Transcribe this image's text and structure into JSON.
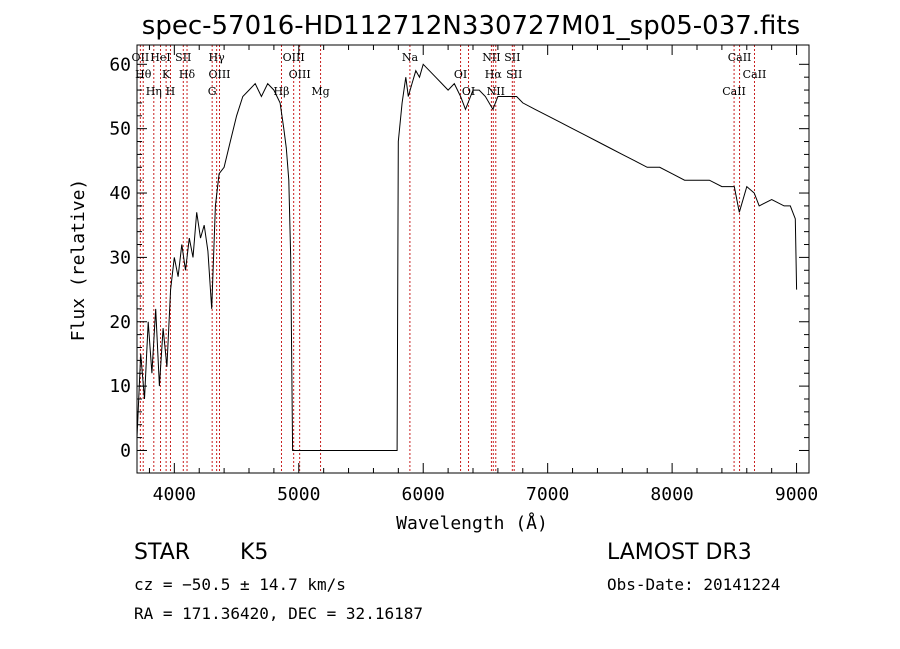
{
  "chart_data": {
    "type": "line",
    "title": "spec-57016-HD112712N330727M01_sp05-037.fits",
    "xlabel": "Wavelength (Å)",
    "ylabel": "Flux (relative)",
    "xlim": [
      3700,
      9100
    ],
    "ylim": [
      -3.5,
      63
    ],
    "xticks": [
      4000,
      5000,
      6000,
      7000,
      8000,
      9000
    ],
    "yticks": [
      0,
      10,
      20,
      30,
      40,
      50,
      60
    ],
    "grid": false,
    "series": [
      {
        "name": "spectrum",
        "x": [
          3700,
          3730,
          3760,
          3790,
          3820,
          3850,
          3880,
          3910,
          3940,
          3970,
          4000,
          4030,
          4060,
          4090,
          4120,
          4150,
          4180,
          4210,
          4240,
          4270,
          4300,
          4330,
          4360,
          4400,
          4450,
          4500,
          4550,
          4600,
          4650,
          4700,
          4750,
          4800,
          4850,
          4880,
          4900,
          4920,
          4935,
          4950,
          5500,
          5790,
          5800,
          5830,
          5860,
          5880,
          5910,
          5940,
          5970,
          6000,
          6050,
          6100,
          6150,
          6200,
          6250,
          6300,
          6340,
          6400,
          6450,
          6500,
          6560,
          6600,
          6650,
          6700,
          6750,
          6800,
          6900,
          7000,
          7100,
          7200,
          7300,
          7400,
          7500,
          7600,
          7700,
          7800,
          7900,
          8000,
          8100,
          8200,
          8300,
          8400,
          8450,
          8500,
          8540,
          8600,
          8660,
          8700,
          8800,
          8900,
          8950,
          8990,
          9000
        ],
        "y": [
          2,
          15,
          8,
          20,
          12,
          22,
          10,
          19,
          13,
          25,
          30,
          27,
          32,
          28,
          33,
          30,
          37,
          33,
          35,
          31,
          22,
          38,
          43,
          44,
          48,
          52,
          55,
          56,
          57,
          55,
          57,
          56,
          54,
          50,
          47,
          42,
          30,
          0,
          0,
          0,
          48,
          54,
          58,
          55,
          57,
          59,
          58,
          60,
          59,
          58,
          57,
          56,
          57,
          55,
          53,
          56,
          56,
          55,
          53,
          55,
          55,
          55,
          55,
          54,
          53,
          52,
          51,
          50,
          49,
          48,
          47,
          46,
          45,
          44,
          44,
          43,
          42,
          42,
          42,
          41,
          41,
          41,
          37,
          41,
          40,
          38,
          39,
          38,
          38,
          36,
          25
        ]
      }
    ],
    "lines": [
      {
        "name": "OII",
        "x": 3727
      },
      {
        "name": "Hθ",
        "x": 3750
      },
      {
        "name": "Hη",
        "x": 3835
      },
      {
        "name": "HeI",
        "x": 3889
      },
      {
        "name": "K",
        "x": 3934
      },
      {
        "name": "H",
        "x": 3969
      },
      {
        "name": "SII",
        "x": 4072
      },
      {
        "name": "Hδ",
        "x": 4102
      },
      {
        "name": "G",
        "x": 4304
      },
      {
        "name": "Hγ",
        "x": 4340
      },
      {
        "name": "OIII",
        "x": 4363
      },
      {
        "name": "Hβ",
        "x": 4861
      },
      {
        "name": "OIII",
        "x": 4959
      },
      {
        "name": "OIII",
        "x": 5007
      },
      {
        "name": "Mg",
        "x": 5175
      },
      {
        "name": "Na",
        "x": 5893
      },
      {
        "name": "OI",
        "x": 6300
      },
      {
        "name": "OI",
        "x": 6364
      },
      {
        "name": "NII",
        "x": 6548
      },
      {
        "name": "Hα",
        "x": 6563
      },
      {
        "name": "NII",
        "x": 6583
      },
      {
        "name": "SII",
        "x": 6716
      },
      {
        "name": "SII",
        "x": 6731
      },
      {
        "name": "CaII",
        "x": 8498
      },
      {
        "name": "CaII",
        "x": 8542
      },
      {
        "name": "CaII",
        "x": 8662
      }
    ]
  },
  "info": {
    "object_class": "STAR",
    "subclass": "K5",
    "redshift": "cz = −50.5 ± 14.7 km/s",
    "coords": "RA = 171.36420, DEC =  32.16187",
    "survey": "LAMOST DR3",
    "obs_date": "Obs-Date: 20141224"
  },
  "colors": {
    "axes": "#000000",
    "spectrum": "#000000",
    "line_markers": "#c81e1e"
  }
}
